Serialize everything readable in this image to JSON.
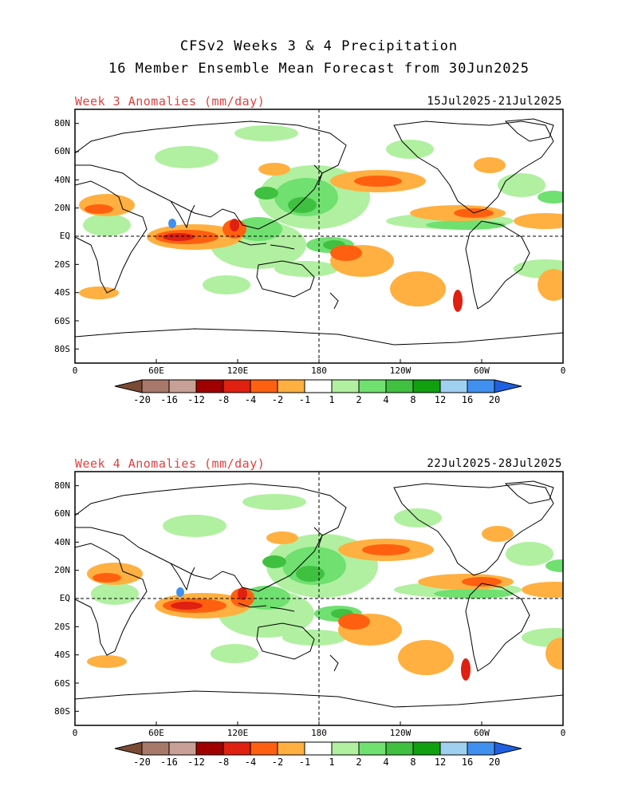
{
  "header": {
    "line1": "CFSv2 Weeks 3 & 4 Precipitation",
    "line2": "16 Member Ensemble Mean Forecast from 30Jun2025"
  },
  "panels": [
    {
      "title": "Week 3 Anomalies (mm/day)",
      "dates": "15Jul2025-21Jul2025"
    },
    {
      "title": "Week 4 Anomalies (mm/day)",
      "dates": "22Jul2025-28Jul2025"
    }
  ],
  "axes": {
    "lat_labels": [
      "80N",
      "60N",
      "40N",
      "20N",
      "EQ",
      "20S",
      "40S",
      "60S",
      "80S"
    ],
    "lon_labels": [
      "0",
      "60E",
      "120E",
      "180",
      "120W",
      "60W",
      "0"
    ]
  },
  "colorbar": {
    "labels": [
      "-20",
      "-16",
      "-12",
      "-8",
      "-4",
      "-2",
      "-1",
      "1",
      "2",
      "4",
      "8",
      "12",
      "16",
      "20"
    ],
    "colors": [
      "#7b4a35",
      "#a8786a",
      "#c8a095",
      "#a00000",
      "#e02010",
      "#ff6010",
      "#ffb040",
      "#ffffff",
      "#b0f0a0",
      "#70e070",
      "#40c040",
      "#10a010",
      "#a0d0f0",
      "#4090f0",
      "#2060e0"
    ]
  },
  "map_colors": {
    "dry_light": "#ffb040",
    "dry_mid": "#ff6010",
    "dry_strong": "#e02010",
    "wet_light": "#b0f0a0",
    "wet_mid": "#70e070",
    "wet_strong": "#40c040",
    "wet_blue": "#4090f0"
  }
}
